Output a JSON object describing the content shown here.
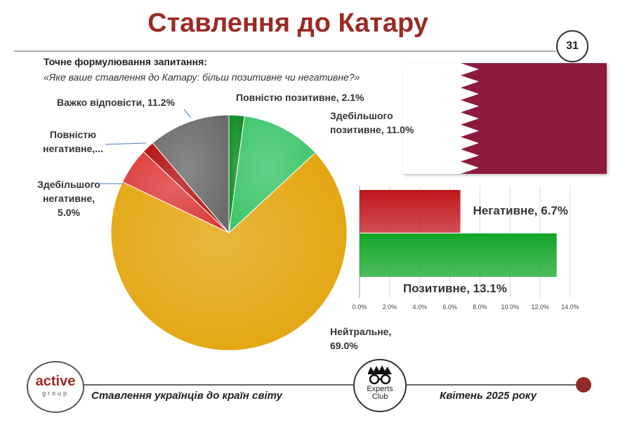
{
  "slide": {
    "title": "Ставлення до Катару",
    "page_number": "31",
    "question_heading": "Точне формулювання запитання:",
    "question_text": "«Яке ваше ставлення до Катару: більш позитивне чи негативне?»"
  },
  "chart_data": [
    {
      "type": "pie",
      "slices": [
        {
          "label": [
            "Повністю позитивне, 2.1%"
          ],
          "value": 2.1,
          "color": "#0a8a1e"
        },
        {
          "label": [
            "Здебільшого",
            "позитивне, 11.0%"
          ],
          "value": 11.0,
          "color": "#3cc56a"
        },
        {
          "label": [
            "Нейтральне,",
            "69.0%"
          ],
          "value": 69.0,
          "color": "#e3a50e"
        },
        {
          "label": [
            "Здебільшого",
            "негативне,",
            "5.0%"
          ],
          "value": 5.0,
          "color": "#dd3a3a"
        },
        {
          "label": [
            "Повністю",
            "негативне,..."
          ],
          "value": 1.7,
          "color": "#b31212"
        },
        {
          "label": [
            "Важко відповісти, 11.2%"
          ],
          "value": 11.2,
          "color": "#6a6a6a"
        }
      ]
    },
    {
      "type": "bar",
      "orientation": "horizontal",
      "categories": [
        "Негативне",
        "Позитивне"
      ],
      "values": [
        6.7,
        13.1
      ],
      "data_labels": [
        "Негативне, 6.7%",
        "Позитивне, 13.1%"
      ],
      "colors": [
        "#c0161a",
        "#12a628"
      ],
      "xlim": [
        0,
        14
      ],
      "ticks": [
        "0.0%",
        "2.0%",
        "4.0%",
        "6.0%",
        "8.0%",
        "10.0%",
        "12.0%",
        "14.0%"
      ]
    }
  ],
  "footer": {
    "logo_left_word": "active",
    "logo_left_sub": "group",
    "left_text": "Ставлення українців до країн світу",
    "logo_right_line1": "Experts",
    "logo_right_line2": "Club",
    "right_text": "Квітень 2025 року"
  }
}
